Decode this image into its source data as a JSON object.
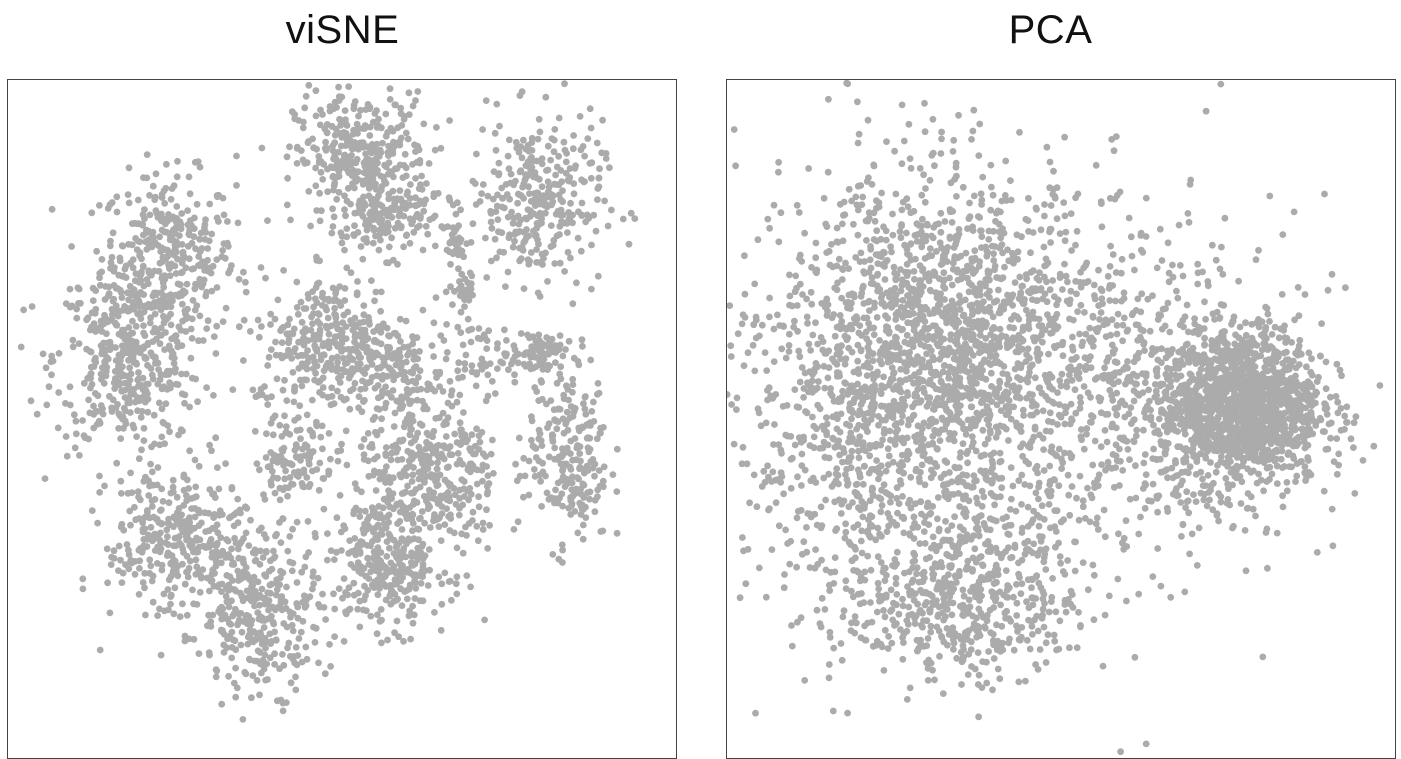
{
  "chart_data": [
    {
      "type": "scatter",
      "title": "viSNE",
      "xlabel": "",
      "ylabel": "",
      "xlim": [
        0,
        100
      ],
      "ylim": [
        0,
        100
      ],
      "grid": false,
      "point_color": "#ababab",
      "clusters": [
        {
          "cx": 24,
          "cy": 74,
          "sx": 5,
          "sy": 6,
          "n": 330
        },
        {
          "cx": 18,
          "cy": 59,
          "sx": 5.5,
          "sy": 7,
          "n": 430
        },
        {
          "cx": 53,
          "cy": 88,
          "sx": 5,
          "sy": 5,
          "n": 380
        },
        {
          "cx": 57,
          "cy": 79,
          "sx": 3.5,
          "sy": 2.5,
          "n": 110
        },
        {
          "cx": 79,
          "cy": 82,
          "sx": 5,
          "sy": 6,
          "n": 320
        },
        {
          "cx": 67,
          "cy": 76,
          "sx": 0.8,
          "sy": 1.5,
          "n": 20
        },
        {
          "cx": 68.5,
          "cy": 69,
          "sx": 1.2,
          "sy": 1.5,
          "n": 30
        },
        {
          "cx": 49,
          "cy": 61,
          "sx": 5.5,
          "sy": 5,
          "n": 380
        },
        {
          "cx": 59,
          "cy": 56,
          "sx": 3,
          "sy": 3,
          "n": 80
        },
        {
          "cx": 71,
          "cy": 59,
          "sx": 3.5,
          "sy": 2.5,
          "n": 70
        },
        {
          "cx": 79.5,
          "cy": 60,
          "sx": 1.8,
          "sy": 2,
          "n": 60
        },
        {
          "cx": 84,
          "cy": 45,
          "sx": 3,
          "sy": 7,
          "n": 230
        },
        {
          "cx": 43,
          "cy": 44,
          "sx": 3,
          "sy": 3,
          "n": 110
        },
        {
          "cx": 63,
          "cy": 42,
          "sx": 5.5,
          "sy": 6,
          "n": 360
        },
        {
          "cx": 57,
          "cy": 29,
          "sx": 4.5,
          "sy": 5,
          "n": 300
        },
        {
          "cx": 25,
          "cy": 32,
          "sx": 5,
          "sy": 6,
          "n": 330
        },
        {
          "cx": 38,
          "cy": 22,
          "sx": 4.5,
          "sy": 6,
          "n": 330
        },
        {
          "cx": 38,
          "cy": 54,
          "sx": 0.8,
          "sy": 0.8,
          "n": 6
        }
      ]
    },
    {
      "type": "scatter",
      "title": "PCA",
      "xlabel": "",
      "ylabel": "",
      "xlim": [
        0,
        100
      ],
      "ylim": [
        0,
        100
      ],
      "grid": false,
      "point_color": "#ababab",
      "clusters": [
        {
          "cx": 33,
          "cy": 60,
          "sx": 12,
          "sy": 13,
          "n": 1700
        },
        {
          "cx": 20,
          "cy": 48,
          "sx": 12,
          "sy": 15,
          "n": 500
        },
        {
          "cx": 35,
          "cy": 24,
          "sx": 9,
          "sy": 6,
          "n": 550
        },
        {
          "cx": 77,
          "cy": 52,
          "sx": 6,
          "sy": 6,
          "n": 1400
        },
        {
          "cx": 62,
          "cy": 52,
          "sx": 9,
          "sy": 12,
          "n": 400
        },
        {
          "cx": 50,
          "cy": 55,
          "sx": 30,
          "sy": 22,
          "n": 250
        }
      ]
    }
  ]
}
